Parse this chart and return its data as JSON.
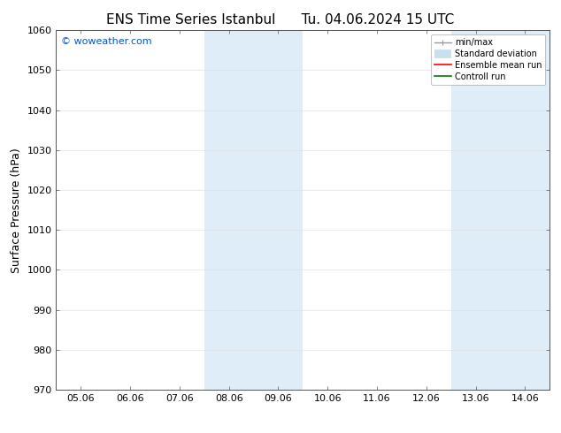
{
  "title_left": "ENS Time Series Istanbul",
  "title_right": "Tu. 04.06.2024 15 UTC",
  "ylabel": "Surface Pressure (hPa)",
  "ylim": [
    970,
    1060
  ],
  "yticks": [
    970,
    980,
    990,
    1000,
    1010,
    1020,
    1030,
    1040,
    1050,
    1060
  ],
  "xtick_labels": [
    "05.06",
    "06.06",
    "07.06",
    "08.06",
    "09.06",
    "10.06",
    "11.06",
    "12.06",
    "13.06",
    "14.06"
  ],
  "x_positions": [
    0,
    1,
    2,
    3,
    4,
    5,
    6,
    7,
    8,
    9
  ],
  "xlim": [
    -0.5,
    9.5
  ],
  "bg_color": "#ffffff",
  "plot_bg_color": "#ffffff",
  "shaded_bands": [
    {
      "x_start": 2.5,
      "x_end": 3.5,
      "color": "#deedf8"
    },
    {
      "x_start": 3.5,
      "x_end": 4.5,
      "color": "#deedf8"
    },
    {
      "x_start": 7.5,
      "x_end": 8.5,
      "color": "#deedf8"
    },
    {
      "x_start": 8.5,
      "x_end": 9.5,
      "color": "#deedf8"
    }
  ],
  "watermark_text": "© woweather.com",
  "watermark_color": "#0055cc",
  "legend_items": [
    {
      "label": "min/max",
      "color": "#999999",
      "lw": 1.0
    },
    {
      "label": "Standard deviation",
      "color": "#c8dff0",
      "lw": 7
    },
    {
      "label": "Ensemble mean run",
      "color": "#ff0000",
      "lw": 1.2
    },
    {
      "label": "Controll run",
      "color": "#007700",
      "lw": 1.2
    }
  ],
  "font_family": "DejaVu Sans",
  "title_fontsize": 11,
  "tick_fontsize": 8,
  "ylabel_fontsize": 9,
  "watermark_fontsize": 8,
  "legend_fontsize": 7
}
